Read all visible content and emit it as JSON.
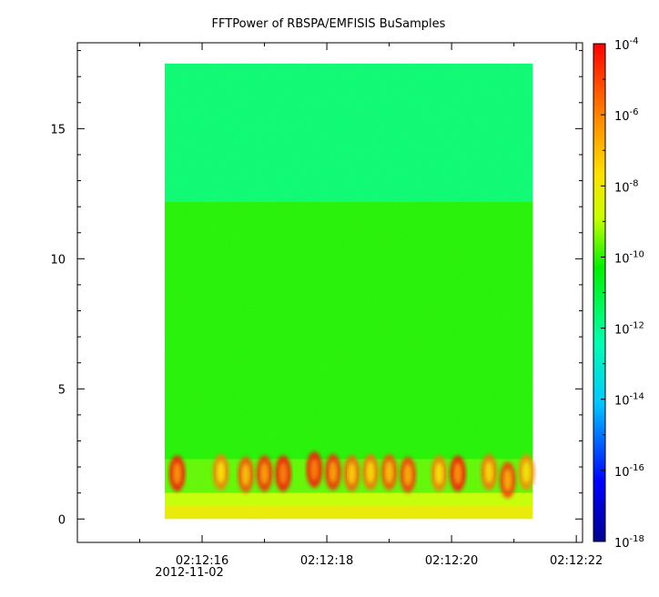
{
  "chart_data": {
    "type": "heatmap",
    "title": "FFTPower of RBSPA/EMFISIS  BuSamples",
    "xlabel": "",
    "ylabel": "",
    "x_ticks": [
      "02:12:16",
      "02:12:18",
      "02:12:20",
      "02:12:22"
    ],
    "x_date_label": "2012-11-02",
    "x_range_seconds": [
      14.0,
      22.1
    ],
    "data_extent_seconds": [
      15.4,
      21.3
    ],
    "y_ticks": [
      0,
      5,
      10,
      15
    ],
    "ylim": [
      -0.9,
      18.3
    ],
    "data_extent_y": [
      0.0,
      17.5
    ],
    "colorbar": {
      "scale": "log",
      "range": [
        1e-18,
        0.0001
      ],
      "tick_labels": [
        {
          "base": "10",
          "exp": "-4",
          "value": -4
        },
        {
          "base": "10",
          "exp": "-6",
          "value": -6
        },
        {
          "base": "10",
          "exp": "-8",
          "value": -8
        },
        {
          "base": "10",
          "exp": "-10",
          "value": -10
        },
        {
          "base": "10",
          "exp": "-12",
          "value": -12
        },
        {
          "base": "10",
          "exp": "-14",
          "value": -14
        },
        {
          "base": "10",
          "exp": "-16",
          "value": -16
        },
        {
          "base": "10",
          "exp": "-18",
          "value": -18
        }
      ]
    },
    "bands": [
      {
        "y_range": [
          0.0,
          0.5
        ],
        "log_power": -8.5
      },
      {
        "y_range": [
          0.5,
          1.0
        ],
        "log_power": -9.5
      },
      {
        "y_range": [
          1.0,
          2.3
        ],
        "log_power": -10.3
      },
      {
        "y_range": [
          2.3,
          12.2
        ],
        "log_power": -10.8
      },
      {
        "y_range": [
          12.2,
          17.5
        ],
        "log_power": -12.0
      }
    ],
    "bursts": [
      {
        "t": 15.6,
        "f": 1.75,
        "log_power": -6.2
      },
      {
        "t": 16.3,
        "f": 1.8,
        "log_power": -8.0
      },
      {
        "t": 16.7,
        "f": 1.7,
        "log_power": -7.2
      },
      {
        "t": 17.0,
        "f": 1.75,
        "log_power": -6.5
      },
      {
        "t": 17.3,
        "f": 1.75,
        "log_power": -5.8
      },
      {
        "t": 17.8,
        "f": 1.9,
        "log_power": -5.8
      },
      {
        "t": 18.1,
        "f": 1.8,
        "log_power": -6.5
      },
      {
        "t": 18.4,
        "f": 1.75,
        "log_power": -7.5
      },
      {
        "t": 18.7,
        "f": 1.8,
        "log_power": -7.8
      },
      {
        "t": 19.0,
        "f": 1.8,
        "log_power": -7.2
      },
      {
        "t": 19.3,
        "f": 1.7,
        "log_power": -6.8
      },
      {
        "t": 19.8,
        "f": 1.75,
        "log_power": -8.0
      },
      {
        "t": 20.1,
        "f": 1.75,
        "log_power": -6.2
      },
      {
        "t": 20.6,
        "f": 1.8,
        "log_power": -7.8
      },
      {
        "t": 20.9,
        "f": 1.5,
        "log_power": -6.8
      },
      {
        "t": 21.2,
        "f": 1.8,
        "log_power": -8.2
      }
    ]
  }
}
